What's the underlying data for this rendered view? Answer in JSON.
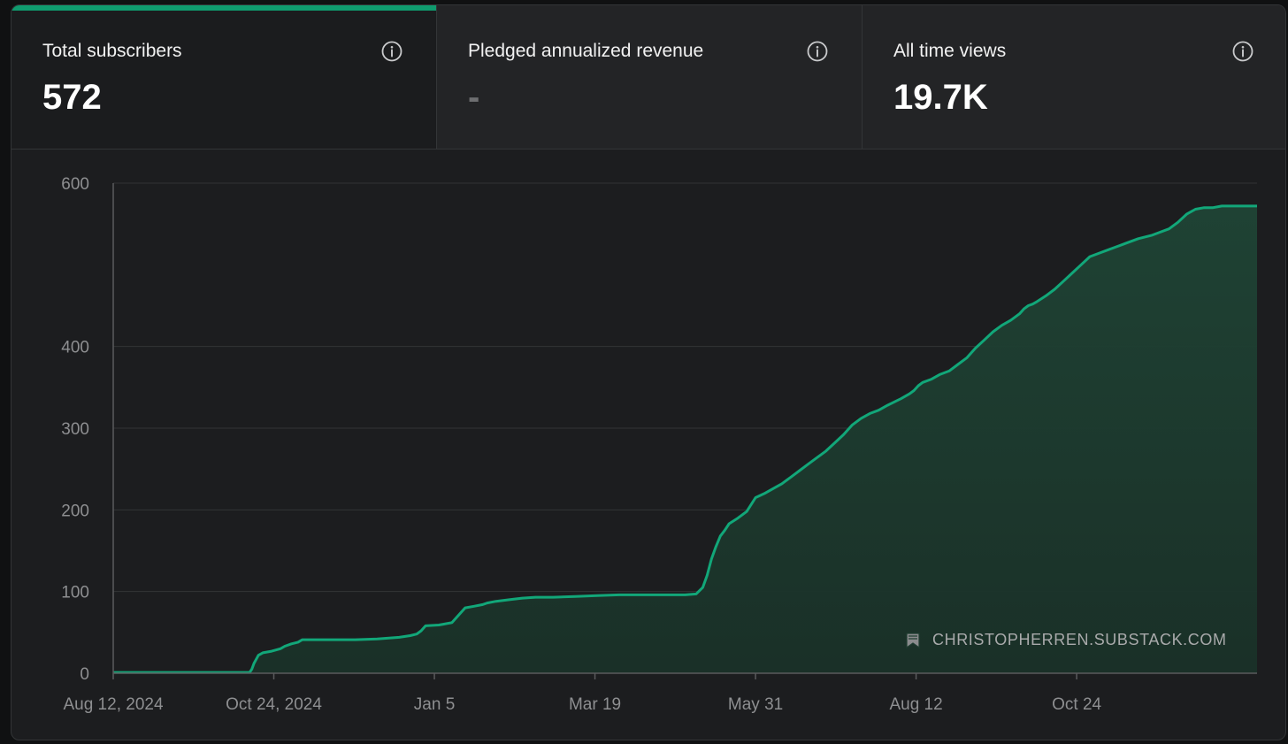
{
  "stats": [
    {
      "label": "Total subscribers",
      "value": "572",
      "active": true
    },
    {
      "label": "Pledged annualized revenue",
      "value": "-",
      "active": false
    },
    {
      "label": "All time views",
      "value": "19.7K",
      "active": false
    }
  ],
  "colors": {
    "accent": "#0f9b6e",
    "line": "#12a779",
    "fill": "#1e3c30",
    "grid": "#323436",
    "axis_text": "#8e8f91"
  },
  "watermark": {
    "icon": "bookmark-icon",
    "text": "CHRISTOPHERREN.SUBSTACK.COM"
  },
  "chart_data": {
    "type": "area",
    "title": "Total subscribers",
    "xlabel": "",
    "ylabel": "",
    "ylim": [
      0,
      600
    ],
    "xlim": [
      0,
      520
    ],
    "y_ticks": [
      0,
      100,
      200,
      300,
      400,
      600
    ],
    "x_ticks": [
      {
        "label": "Aug 12, 2024",
        "day": 0
      },
      {
        "label": "Oct 24, 2024",
        "day": 73
      },
      {
        "label": "Jan 5",
        "day": 146
      },
      {
        "label": "Mar 19",
        "day": 219
      },
      {
        "label": "May 31",
        "day": 292
      },
      {
        "label": "Aug 12",
        "day": 365
      },
      {
        "label": "Oct 24",
        "day": 438
      }
    ],
    "x_unit": "days since Aug 12, 2024",
    "series": [
      {
        "name": "Subscribers",
        "x": [
          0,
          62,
          63,
          64,
          65,
          66,
          68,
          72,
          76,
          78,
          81,
          84,
          86,
          88,
          92,
          96,
          100,
          110,
          120,
          130,
          135,
          138,
          140,
          142,
          148,
          150,
          154,
          160,
          164,
          168,
          170,
          174,
          180,
          186,
          192,
          200,
          210,
          220,
          230,
          240,
          250,
          260,
          265,
          268,
          270,
          272,
          274,
          276,
          278,
          280,
          284,
          288,
          292,
          296,
          300,
          304,
          308,
          312,
          316,
          320,
          324,
          328,
          332,
          336,
          340,
          344,
          348,
          352,
          358,
          362,
          364,
          366,
          368,
          372,
          376,
          380,
          384,
          388,
          392,
          396,
          400,
          404,
          408,
          412,
          414,
          416,
          418,
          420,
          424,
          428,
          432,
          436,
          440,
          444,
          448,
          452,
          456,
          460,
          466,
          472,
          476,
          480,
          484,
          488,
          492,
          496,
          500,
          504,
          508,
          512,
          516,
          520
        ],
        "values": [
          1,
          1,
          5,
          12,
          17,
          22,
          25,
          27,
          30,
          33,
          36,
          38,
          41,
          41,
          41,
          41,
          41,
          41,
          42,
          44,
          46,
          48,
          52,
          58,
          59,
          60,
          62,
          80,
          82,
          84,
          86,
          88,
          90,
          92,
          93,
          93,
          94,
          95,
          96,
          96,
          96,
          96,
          97,
          105,
          120,
          140,
          155,
          168,
          175,
          183,
          190,
          198,
          215,
          220,
          226,
          232,
          240,
          248,
          256,
          264,
          272,
          282,
          292,
          304,
          312,
          318,
          322,
          328,
          336,
          342,
          346,
          352,
          356,
          360,
          366,
          370,
          378,
          386,
          398,
          408,
          418,
          426,
          432,
          440,
          446,
          450,
          452,
          455,
          462,
          470,
          480,
          490,
          500,
          510,
          514,
          518,
          522,
          526,
          532,
          536,
          540,
          544,
          552,
          562,
          568,
          570,
          570,
          572,
          572,
          572,
          572,
          572
        ]
      }
    ]
  }
}
